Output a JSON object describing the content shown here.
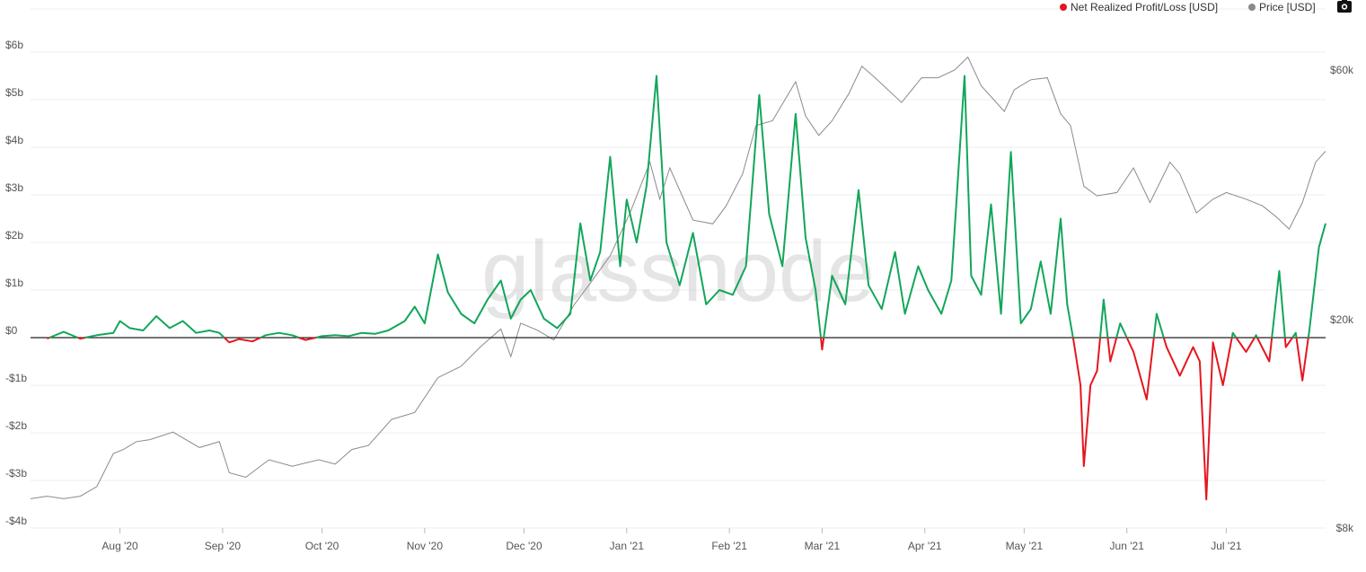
{
  "watermark": "glassnode",
  "legend": [
    {
      "label": "Net Realized Profit/Loss [USD]",
      "color": "#e4171f"
    },
    {
      "label": "Price [USD]",
      "color": "#8a8a8a"
    }
  ],
  "camera_icon": "camera-icon",
  "chart_data": {
    "type": "line",
    "x_start": "2020-07-05",
    "x_end": "2021-07-31",
    "x_ticks": [
      {
        "date": "2020-08-01",
        "label": "Aug '20"
      },
      {
        "date": "2020-09-01",
        "label": "Sep '20"
      },
      {
        "date": "2020-10-01",
        "label": "Oct '20"
      },
      {
        "date": "2020-11-01",
        "label": "Nov '20"
      },
      {
        "date": "2020-12-01",
        "label": "Dec '20"
      },
      {
        "date": "2021-01-01",
        "label": "Jan '21"
      },
      {
        "date": "2021-02-01",
        "label": "Feb '21"
      },
      {
        "date": "2021-03-01",
        "label": "Mar '21"
      },
      {
        "date": "2021-04-01",
        "label": "Apr '21"
      },
      {
        "date": "2021-05-01",
        "label": "May '21"
      },
      {
        "date": "2021-06-01",
        "label": "Jun '21"
      },
      {
        "date": "2021-07-01",
        "label": "Jul '21"
      }
    ],
    "y_left": {
      "ylim": [
        -4,
        6
      ],
      "unit": "USD billions",
      "ticks": [
        {
          "value": 6,
          "label": "$6b"
        },
        {
          "value": 5,
          "label": "$5b"
        },
        {
          "value": 4,
          "label": "$4b"
        },
        {
          "value": 3,
          "label": "$3b"
        },
        {
          "value": 2,
          "label": "$2b"
        },
        {
          "value": 1,
          "label": "$1b"
        },
        {
          "value": 0,
          "label": "$0"
        },
        {
          "value": -1,
          "label": "-$1b"
        },
        {
          "value": -2,
          "label": "-$2b"
        },
        {
          "value": -3,
          "label": "-$3b"
        },
        {
          "value": -4,
          "label": "-$4b"
        }
      ]
    },
    "y_right": {
      "scale": "log",
      "ylim": [
        8000,
        68000
      ],
      "ticks": [
        {
          "value": 60000,
          "label": "$60k"
        },
        {
          "value": 20000,
          "label": "$20k"
        },
        {
          "value": 8000,
          "label": "$8k"
        }
      ]
    },
    "grid": true,
    "legend_position": "top-right",
    "series": [
      {
        "name": "Net Realized Profit/Loss [USD]",
        "axis": "left",
        "positive_color": "#12a65a",
        "negative_color": "#e4171f",
        "points": [
          [
            "2020-07-05",
            0
          ],
          [
            "2020-07-10",
            -0.02
          ],
          [
            "2020-07-15",
            0.12
          ],
          [
            "2020-07-20",
            -0.02
          ],
          [
            "2020-07-25",
            0.05
          ],
          [
            "2020-07-30",
            0.1
          ],
          [
            "2020-08-01",
            0.35
          ],
          [
            "2020-08-04",
            0.2
          ],
          [
            "2020-08-08",
            0.15
          ],
          [
            "2020-08-12",
            0.45
          ],
          [
            "2020-08-16",
            0.2
          ],
          [
            "2020-08-20",
            0.35
          ],
          [
            "2020-08-24",
            0.1
          ],
          [
            "2020-08-28",
            0.15
          ],
          [
            "2020-08-31",
            0.1
          ],
          [
            "2020-09-03",
            -0.1
          ],
          [
            "2020-09-06",
            -0.03
          ],
          [
            "2020-09-10",
            -0.08
          ],
          [
            "2020-09-14",
            0.05
          ],
          [
            "2020-09-18",
            0.1
          ],
          [
            "2020-09-22",
            0.05
          ],
          [
            "2020-09-26",
            -0.05
          ],
          [
            "2020-10-01",
            0.03
          ],
          [
            "2020-10-05",
            0.05
          ],
          [
            "2020-10-09",
            0.03
          ],
          [
            "2020-10-13",
            0.1
          ],
          [
            "2020-10-17",
            0.08
          ],
          [
            "2020-10-21",
            0.15
          ],
          [
            "2020-10-26",
            0.35
          ],
          [
            "2020-10-29",
            0.65
          ],
          [
            "2020-11-01",
            0.3
          ],
          [
            "2020-11-05",
            1.75
          ],
          [
            "2020-11-08",
            0.95
          ],
          [
            "2020-11-12",
            0.5
          ],
          [
            "2020-11-16",
            0.3
          ],
          [
            "2020-11-20",
            0.8
          ],
          [
            "2020-11-24",
            1.2
          ],
          [
            "2020-11-27",
            0.4
          ],
          [
            "2020-11-30",
            0.8
          ],
          [
            "2020-12-03",
            1.0
          ],
          [
            "2020-12-07",
            0.4
          ],
          [
            "2020-12-11",
            0.2
          ],
          [
            "2020-12-15",
            0.5
          ],
          [
            "2020-12-18",
            2.4
          ],
          [
            "2020-12-21",
            1.2
          ],
          [
            "2020-12-24",
            1.8
          ],
          [
            "2020-12-27",
            3.8
          ],
          [
            "2020-12-30",
            1.5
          ],
          [
            "2021-01-01",
            2.9
          ],
          [
            "2021-01-04",
            2.0
          ],
          [
            "2021-01-07",
            3.2
          ],
          [
            "2021-01-10",
            5.5
          ],
          [
            "2021-01-13",
            2.0
          ],
          [
            "2021-01-17",
            1.1
          ],
          [
            "2021-01-21",
            2.2
          ],
          [
            "2021-01-25",
            0.7
          ],
          [
            "2021-01-29",
            1.0
          ],
          [
            "2021-02-02",
            0.9
          ],
          [
            "2021-02-06",
            1.5
          ],
          [
            "2021-02-10",
            5.1
          ],
          [
            "2021-02-13",
            2.6
          ],
          [
            "2021-02-17",
            1.5
          ],
          [
            "2021-02-21",
            4.7
          ],
          [
            "2021-02-24",
            2.1
          ],
          [
            "2021-02-27",
            1.0
          ],
          [
            "2021-03-01",
            -0.25
          ],
          [
            "2021-03-04",
            1.3
          ],
          [
            "2021-03-08",
            0.7
          ],
          [
            "2021-03-12",
            3.1
          ],
          [
            "2021-03-15",
            1.1
          ],
          [
            "2021-03-19",
            0.6
          ],
          [
            "2021-03-23",
            1.8
          ],
          [
            "2021-03-26",
            0.5
          ],
          [
            "2021-03-30",
            1.5
          ],
          [
            "2021-04-02",
            1.0
          ],
          [
            "2021-04-06",
            0.5
          ],
          [
            "2021-04-09",
            1.2
          ],
          [
            "2021-04-13",
            5.5
          ],
          [
            "2021-04-15",
            1.3
          ],
          [
            "2021-04-18",
            0.9
          ],
          [
            "2021-04-21",
            2.8
          ],
          [
            "2021-04-24",
            0.5
          ],
          [
            "2021-04-27",
            3.9
          ],
          [
            "2021-04-30",
            0.3
          ],
          [
            "2021-05-03",
            0.6
          ],
          [
            "2021-05-06",
            1.6
          ],
          [
            "2021-05-09",
            0.5
          ],
          [
            "2021-05-12",
            2.5
          ],
          [
            "2021-05-14",
            0.7
          ],
          [
            "2021-05-16",
            -0.1
          ],
          [
            "2021-05-18",
            -1.0
          ],
          [
            "2021-05-19",
            -2.7
          ],
          [
            "2021-05-21",
            -1.0
          ],
          [
            "2021-05-23",
            -0.7
          ],
          [
            "2021-05-25",
            0.8
          ],
          [
            "2021-05-27",
            -0.5
          ],
          [
            "2021-05-30",
            0.3
          ],
          [
            "2021-06-03",
            -0.3
          ],
          [
            "2021-06-07",
            -1.3
          ],
          [
            "2021-06-10",
            0.5
          ],
          [
            "2021-06-13",
            -0.2
          ],
          [
            "2021-06-17",
            -0.8
          ],
          [
            "2021-06-21",
            -0.2
          ],
          [
            "2021-06-23",
            -0.5
          ],
          [
            "2021-06-25",
            -3.4
          ],
          [
            "2021-06-27",
            -0.1
          ],
          [
            "2021-06-30",
            -1.0
          ],
          [
            "2021-07-03",
            0.1
          ],
          [
            "2021-07-07",
            -0.3
          ],
          [
            "2021-07-10",
            0.05
          ],
          [
            "2021-07-14",
            -0.5
          ],
          [
            "2021-07-17",
            1.4
          ],
          [
            "2021-07-19",
            -0.2
          ],
          [
            "2021-07-22",
            0.1
          ],
          [
            "2021-07-24",
            -0.9
          ],
          [
            "2021-07-26",
            0.1
          ],
          [
            "2021-07-29",
            1.9
          ],
          [
            "2021-07-31",
            2.4
          ]
        ]
      },
      {
        "name": "Price [USD]",
        "axis": "right",
        "color": "#8a8a8a",
        "points": [
          [
            "2020-07-05",
            9100
          ],
          [
            "2020-07-10",
            9200
          ],
          [
            "2020-07-15",
            9100
          ],
          [
            "2020-07-20",
            9200
          ],
          [
            "2020-07-25",
            9600
          ],
          [
            "2020-07-30",
            11100
          ],
          [
            "2020-08-02",
            11300
          ],
          [
            "2020-08-06",
            11700
          ],
          [
            "2020-08-10",
            11800
          ],
          [
            "2020-08-17",
            12200
          ],
          [
            "2020-08-25",
            11400
          ],
          [
            "2020-08-31",
            11700
          ],
          [
            "2020-09-03",
            10200
          ],
          [
            "2020-09-08",
            10000
          ],
          [
            "2020-09-15",
            10800
          ],
          [
            "2020-09-22",
            10500
          ],
          [
            "2020-09-30",
            10800
          ],
          [
            "2020-10-05",
            10600
          ],
          [
            "2020-10-10",
            11300
          ],
          [
            "2020-10-15",
            11500
          ],
          [
            "2020-10-22",
            12900
          ],
          [
            "2020-10-29",
            13300
          ],
          [
            "2020-11-05",
            15500
          ],
          [
            "2020-11-12",
            16300
          ],
          [
            "2020-11-18",
            17800
          ],
          [
            "2020-11-24",
            19200
          ],
          [
            "2020-11-27",
            17000
          ],
          [
            "2020-11-30",
            19700
          ],
          [
            "2020-12-05",
            19100
          ],
          [
            "2020-12-10",
            18300
          ],
          [
            "2020-12-16",
            21300
          ],
          [
            "2020-12-21",
            23500
          ],
          [
            "2020-12-27",
            26500
          ],
          [
            "2021-01-02",
            32000
          ],
          [
            "2021-01-08",
            40000
          ],
          [
            "2021-01-11",
            34000
          ],
          [
            "2021-01-14",
            39000
          ],
          [
            "2021-01-21",
            31000
          ],
          [
            "2021-01-27",
            30500
          ],
          [
            "2021-01-31",
            33000
          ],
          [
            "2021-02-05",
            38000
          ],
          [
            "2021-02-09",
            47000
          ],
          [
            "2021-02-14",
            48000
          ],
          [
            "2021-02-21",
            57000
          ],
          [
            "2021-02-24",
            49000
          ],
          [
            "2021-02-28",
            45000
          ],
          [
            "2021-03-04",
            48000
          ],
          [
            "2021-03-09",
            54000
          ],
          [
            "2021-03-13",
            61000
          ],
          [
            "2021-03-17",
            58000
          ],
          [
            "2021-03-25",
            52000
          ],
          [
            "2021-03-31",
            58000
          ],
          [
            "2021-04-05",
            58000
          ],
          [
            "2021-04-10",
            60000
          ],
          [
            "2021-04-14",
            63500
          ],
          [
            "2021-04-18",
            56000
          ],
          [
            "2021-04-25",
            50000
          ],
          [
            "2021-04-28",
            55000
          ],
          [
            "2021-05-03",
            57500
          ],
          [
            "2021-05-08",
            58000
          ],
          [
            "2021-05-12",
            49500
          ],
          [
            "2021-05-15",
            47000
          ],
          [
            "2021-05-19",
            36000
          ],
          [
            "2021-05-23",
            34500
          ],
          [
            "2021-05-29",
            35000
          ],
          [
            "2021-06-03",
            39000
          ],
          [
            "2021-06-08",
            33500
          ],
          [
            "2021-06-14",
            40000
          ],
          [
            "2021-06-17",
            38000
          ],
          [
            "2021-06-22",
            32000
          ],
          [
            "2021-06-27",
            34000
          ],
          [
            "2021-07-01",
            35000
          ],
          [
            "2021-07-07",
            34000
          ],
          [
            "2021-07-12",
            33000
          ],
          [
            "2021-07-16",
            31500
          ],
          [
            "2021-07-20",
            29800
          ],
          [
            "2021-07-24",
            33500
          ],
          [
            "2021-07-28",
            40000
          ],
          [
            "2021-07-31",
            42000
          ]
        ]
      }
    ]
  }
}
